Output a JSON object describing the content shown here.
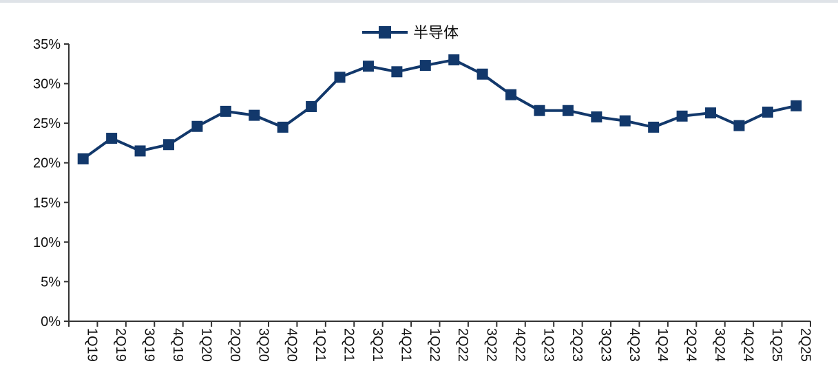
{
  "chart_data": {
    "type": "line",
    "title": "",
    "xlabel": "",
    "ylabel": "",
    "ylim": [
      0,
      35
    ],
    "y_ticks": [
      "0%",
      "5%",
      "10%",
      "15%",
      "20%",
      "25%",
      "30%",
      "35%"
    ],
    "y_tick_values": [
      0,
      5,
      10,
      15,
      20,
      25,
      30,
      35
    ],
    "categories": [
      "1Q19",
      "2Q19",
      "3Q19",
      "4Q19",
      "1Q20",
      "2Q20",
      "3Q20",
      "4Q20",
      "1Q21",
      "2Q21",
      "3Q21",
      "4Q21",
      "1Q22",
      "2Q22",
      "3Q22",
      "4Q22",
      "1Q23",
      "2Q23",
      "3Q23",
      "4Q23",
      "1Q24",
      "2Q24",
      "3Q24",
      "4Q24",
      "1Q25",
      "2Q25"
    ],
    "series": [
      {
        "name": "半导体",
        "color": "#12386b",
        "marker": "square",
        "values": [
          20.5,
          23.1,
          21.5,
          22.3,
          24.6,
          26.5,
          26.0,
          24.5,
          27.1,
          30.8,
          32.2,
          31.5,
          32.3,
          33.0,
          31.2,
          28.6,
          26.6,
          26.6,
          25.8,
          25.3,
          24.5,
          25.9,
          26.3,
          24.7,
          26.4,
          27.2
        ]
      }
    ],
    "grid": false,
    "legend_position": "top-center"
  }
}
